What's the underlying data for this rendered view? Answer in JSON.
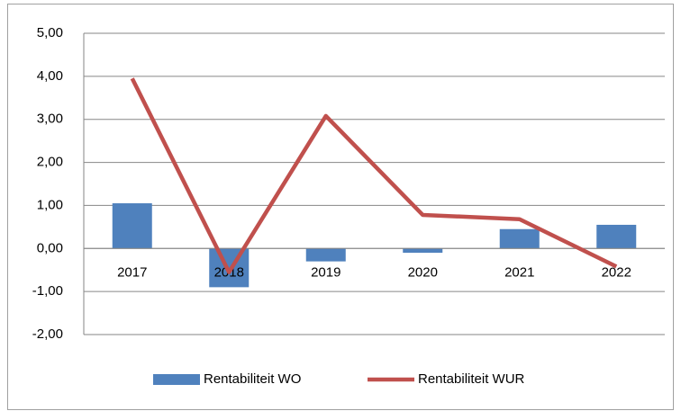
{
  "chart_data": {
    "type": "bar",
    "categories": [
      "2017",
      "2018",
      "2019",
      "2020",
      "2021",
      "2022"
    ],
    "series": [
      {
        "name": "Rentabiliteit WO",
        "type": "bar",
        "color": "#4f81bd",
        "values": [
          1.05,
          -0.9,
          -0.3,
          -0.1,
          0.45,
          0.55
        ]
      },
      {
        "name": "Rentabiliteit WUR",
        "type": "line",
        "color": "#c0504d",
        "values": [
          3.95,
          -0.55,
          3.08,
          0.78,
          0.68,
          -0.42
        ]
      }
    ],
    "ylim": [
      -2,
      5
    ],
    "yticks": [
      {
        "value": -2,
        "label": "-2,00"
      },
      {
        "value": -1,
        "label": "-1,00"
      },
      {
        "value": 0,
        "label": "0,00"
      },
      {
        "value": 1,
        "label": "1,00"
      },
      {
        "value": 2,
        "label": "2,00"
      },
      {
        "value": 3,
        "label": "3,00"
      },
      {
        "value": 4,
        "label": "4,00"
      },
      {
        "value": 5,
        "label": "5,00"
      }
    ],
    "grid": true,
    "legend": "bottom"
  }
}
